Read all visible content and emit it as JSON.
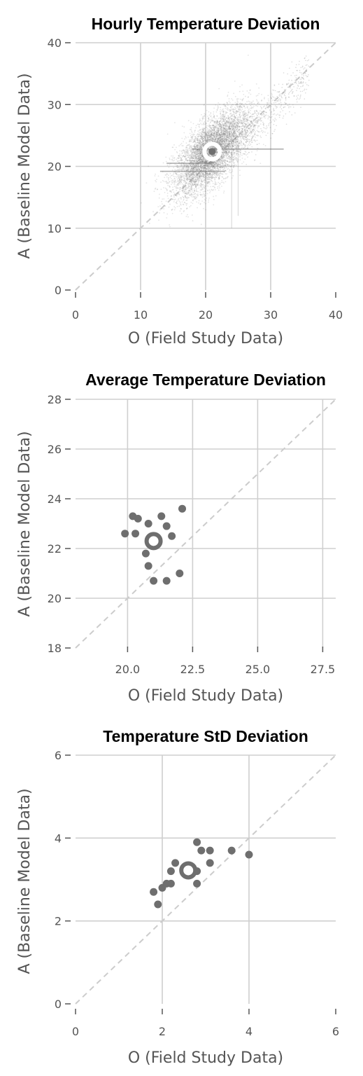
{
  "chart_data": [
    {
      "type": "scatter",
      "title": "Hourly Temperature Deviation",
      "xlabel": "O (Field Study Data)",
      "ylabel": "A (Baseline Model Data)",
      "xlim": [
        0,
        40
      ],
      "ylim": [
        0,
        40
      ],
      "xticks": [
        "0",
        "10",
        "20",
        "30",
        "40"
      ],
      "yticks": [
        "0",
        "10",
        "20",
        "30",
        "40"
      ],
      "grid": true,
      "reference_line": "y=x",
      "point_color": "#6e6e6e",
      "mean_point": {
        "x": 21,
        "y": 22.4,
        "style": "white-ring"
      },
      "series": [
        {
          "style": "dense cloud of small points, concentrated roughly x 15-27, y 15-30"
        }
      ]
    },
    {
      "type": "scatter",
      "title": "Average Temperature Deviation",
      "xlabel": "O (Field Study Data)",
      "ylabel": "A (Baseline Model Data)",
      "xlim": [
        18,
        28
      ],
      "ylim": [
        18,
        28
      ],
      "xticks": [
        "20.0",
        "22.5",
        "25.0",
        "27.5"
      ],
      "yticks": [
        "18",
        "20",
        "22",
        "24",
        "26",
        "28"
      ],
      "grid": true,
      "reference_line": "y=x",
      "point_color": "#6e6e6e",
      "mean_point": {
        "x": 21.0,
        "y": 22.3,
        "style": "ring"
      },
      "points": [
        {
          "x": 19.9,
          "y": 22.6
        },
        {
          "x": 20.2,
          "y": 23.3
        },
        {
          "x": 20.3,
          "y": 22.6
        },
        {
          "x": 20.4,
          "y": 23.2
        },
        {
          "x": 20.8,
          "y": 23.0
        },
        {
          "x": 21.3,
          "y": 23.3
        },
        {
          "x": 21.5,
          "y": 22.9
        },
        {
          "x": 21.7,
          "y": 22.5
        },
        {
          "x": 22.1,
          "y": 23.6
        },
        {
          "x": 20.7,
          "y": 21.8
        },
        {
          "x": 20.8,
          "y": 21.3
        },
        {
          "x": 21.0,
          "y": 20.7
        },
        {
          "x": 21.5,
          "y": 20.7
        },
        {
          "x": 22.0,
          "y": 21.0
        }
      ]
    },
    {
      "type": "scatter",
      "title": "Temperature StD Deviation",
      "xlabel": "O (Field Study Data)",
      "ylabel": "A (Baseline Model Data)",
      "xlim": [
        0,
        6
      ],
      "ylim": [
        0,
        6
      ],
      "xticks": [
        "0",
        "2",
        "4",
        "6"
      ],
      "yticks": [
        "0",
        "2",
        "4",
        "6"
      ],
      "grid": true,
      "reference_line": "y=x",
      "point_color": "#6e6e6e",
      "mean_point": {
        "x": 2.6,
        "y": 3.22,
        "style": "ring"
      },
      "points": [
        {
          "x": 1.8,
          "y": 2.7
        },
        {
          "x": 1.9,
          "y": 2.4
        },
        {
          "x": 2.0,
          "y": 2.8
        },
        {
          "x": 2.1,
          "y": 2.9
        },
        {
          "x": 2.2,
          "y": 3.2
        },
        {
          "x": 2.2,
          "y": 2.9
        },
        {
          "x": 2.3,
          "y": 3.4
        },
        {
          "x": 2.8,
          "y": 3.9
        },
        {
          "x": 2.9,
          "y": 3.7
        },
        {
          "x": 3.1,
          "y": 3.7
        },
        {
          "x": 3.1,
          "y": 3.4
        },
        {
          "x": 2.8,
          "y": 2.9
        },
        {
          "x": 2.8,
          "y": 3.2
        },
        {
          "x": 3.6,
          "y": 3.7
        },
        {
          "x": 4.0,
          "y": 3.6
        }
      ]
    }
  ]
}
